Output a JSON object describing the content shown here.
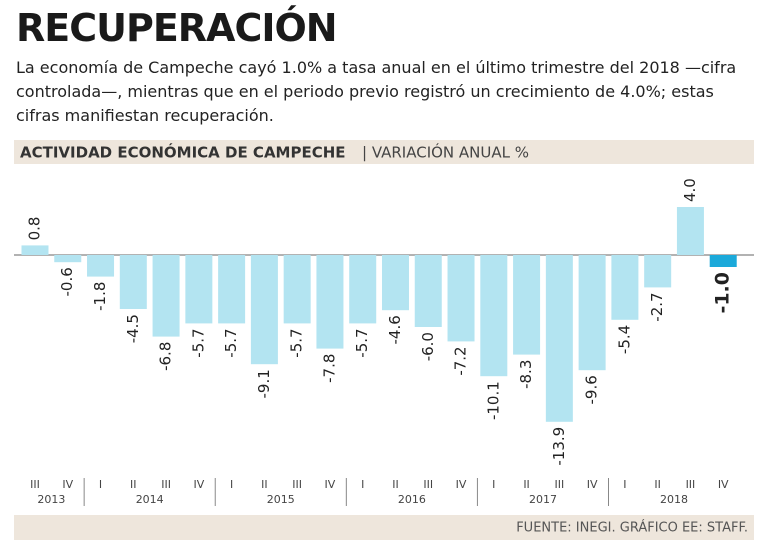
{
  "chart_data": {
    "type": "bar",
    "title": "RECUPERACIÓN",
    "subtitle": "La economía de Campeche cayó 1.0% a tasa anual en el último trimestre del 2018 —cifra controlada—, mientras que en el periodo previo registró un crecimiento de 4.0%; estas cifras manifiestan recuperación.",
    "chart_title": "ACTIVIDAD ECONÓMICA DE CAMPECHE",
    "unit_label": "| VARIACIÓN ANUAL %",
    "source": "FUENTE: INEGI. GRÁFICO EE: STAFF.",
    "categories": [
      "III",
      "IV",
      "I",
      "II",
      "III",
      "IV",
      "I",
      "II",
      "III",
      "IV",
      "I",
      "II",
      "III",
      "IV",
      "I",
      "II",
      "III",
      "IV",
      "I",
      "II",
      "III",
      "IV"
    ],
    "years": [
      "2013",
      "2014",
      "2015",
      "2016",
      "2017",
      "2018"
    ],
    "values": [
      0.8,
      -0.6,
      -1.8,
      -4.5,
      -6.8,
      -5.7,
      -5.7,
      -9.1,
      -5.7,
      -7.8,
      -5.7,
      -4.6,
      -6.0,
      -7.2,
      -10.1,
      -8.3,
      -13.9,
      -9.6,
      -5.4,
      -2.7,
      4.0,
      -1.0
    ],
    "value_labels": [
      "0.8",
      "-0.6",
      "-1.8",
      "-4.5",
      "-6.8",
      "-5.7",
      "-5.7",
      "-9.1",
      "-5.7",
      "-7.8",
      "-5.7",
      "-4.6",
      "-6.0",
      "-7.2",
      "-10.1",
      "-8.3",
      "-13.9",
      "-9.6",
      "-5.4",
      "-2.7",
      "4.0",
      "-1.0"
    ],
    "colors": [
      "#b3e4f1",
      "#b3e4f1",
      "#b3e4f1",
      "#b3e4f1",
      "#b3e4f1",
      "#b3e4f1",
      "#b3e4f1",
      "#b3e4f1",
      "#b3e4f1",
      "#b3e4f1",
      "#b3e4f1",
      "#b3e4f1",
      "#b3e4f1",
      "#b3e4f1",
      "#b3e4f1",
      "#b3e4f1",
      "#b3e4f1",
      "#b3e4f1",
      "#b3e4f1",
      "#b3e4f1",
      "#b3e4f1",
      "#1ba9da"
    ],
    "ylim": [
      -18,
      7
    ]
  }
}
